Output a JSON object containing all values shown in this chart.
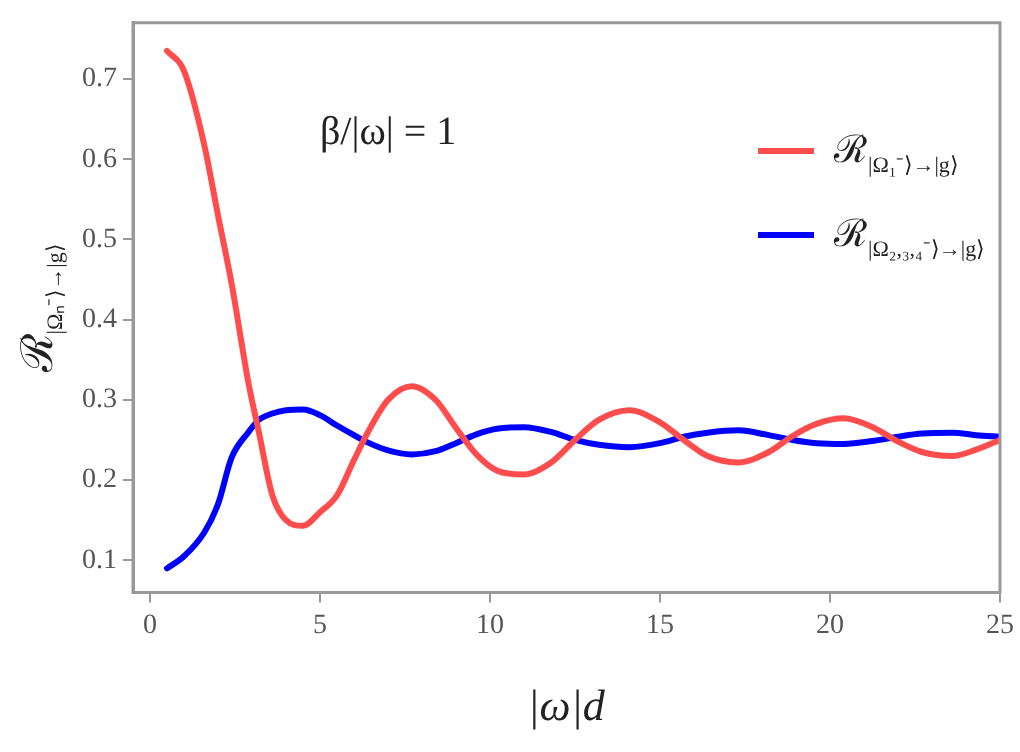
{
  "chart_data": {
    "type": "line",
    "xlabel": "|ω|d",
    "ylabel": "ℛ$_{|Ωₙ⁻⟩→|g⟩}$",
    "annotations": [
      "β/|ω| = 1"
    ],
    "xlim": [
      -0.5,
      25
    ],
    "ylim": [
      0.06,
      0.77
    ],
    "xticks": [
      0,
      5,
      10,
      15,
      20,
      25
    ],
    "yticks": [
      0.1,
      0.2,
      0.3,
      0.4,
      0.5,
      0.6,
      0.7
    ],
    "grid": false,
    "legend": "top right",
    "marker": "none",
    "line_style": "solid",
    "series": [
      {
        "name": "ℛ$_{|Ω₁⁻⟩→|g⟩}$",
        "color": "#ff4d4d",
        "x": [
          0.5,
          1.0,
          1.6,
          2.0,
          2.4,
          2.9,
          3.2,
          3.6,
          4.0,
          4.5,
          5.0,
          5.5,
          6.0,
          6.4,
          7.0,
          7.7,
          8.4,
          9.0,
          9.6,
          10.2,
          11.0,
          11.8,
          12.5,
          13.2,
          14.1,
          15.0,
          15.7,
          16.4,
          17.3,
          18.2,
          18.9,
          19.6,
          20.4,
          21.3,
          22.0,
          22.7,
          23.6,
          24.3,
          25.0
        ],
        "values": [
          0.735,
          0.71,
          0.617,
          0.53,
          0.445,
          0.32,
          0.26,
          0.181,
          0.15,
          0.143,
          0.16,
          0.181,
          0.225,
          0.259,
          0.3,
          0.317,
          0.3,
          0.265,
          0.232,
          0.212,
          0.207,
          0.222,
          0.25,
          0.275,
          0.287,
          0.272,
          0.25,
          0.23,
          0.222,
          0.235,
          0.255,
          0.27,
          0.277,
          0.265,
          0.248,
          0.235,
          0.23,
          0.238,
          0.25
        ]
      },
      {
        "name": "ℛ$_{|Ω₂,₃,₄⁻⟩→|g⟩}$",
        "color": "#0000ff",
        "x": [
          0.5,
          1.0,
          1.6,
          2.0,
          2.4,
          2.9,
          3.2,
          3.6,
          4.0,
          4.5,
          5.0,
          5.5,
          6.0,
          6.4,
          7.0,
          7.7,
          8.4,
          9.0,
          9.6,
          10.2,
          11.0,
          11.8,
          12.5,
          13.2,
          14.1,
          15.0,
          15.7,
          16.4,
          17.3,
          18.2,
          18.9,
          19.6,
          20.4,
          21.3,
          22.0,
          22.7,
          23.6,
          24.3,
          25.0
        ],
        "values": [
          0.09,
          0.105,
          0.135,
          0.17,
          0.228,
          0.26,
          0.275,
          0.283,
          0.287,
          0.288,
          0.281,
          0.268,
          0.256,
          0.247,
          0.237,
          0.232,
          0.236,
          0.246,
          0.257,
          0.264,
          0.266,
          0.26,
          0.25,
          0.244,
          0.241,
          0.246,
          0.254,
          0.259,
          0.262,
          0.256,
          0.25,
          0.246,
          0.245,
          0.249,
          0.254,
          0.258,
          0.259,
          0.256,
          0.254
        ]
      }
    ]
  }
}
